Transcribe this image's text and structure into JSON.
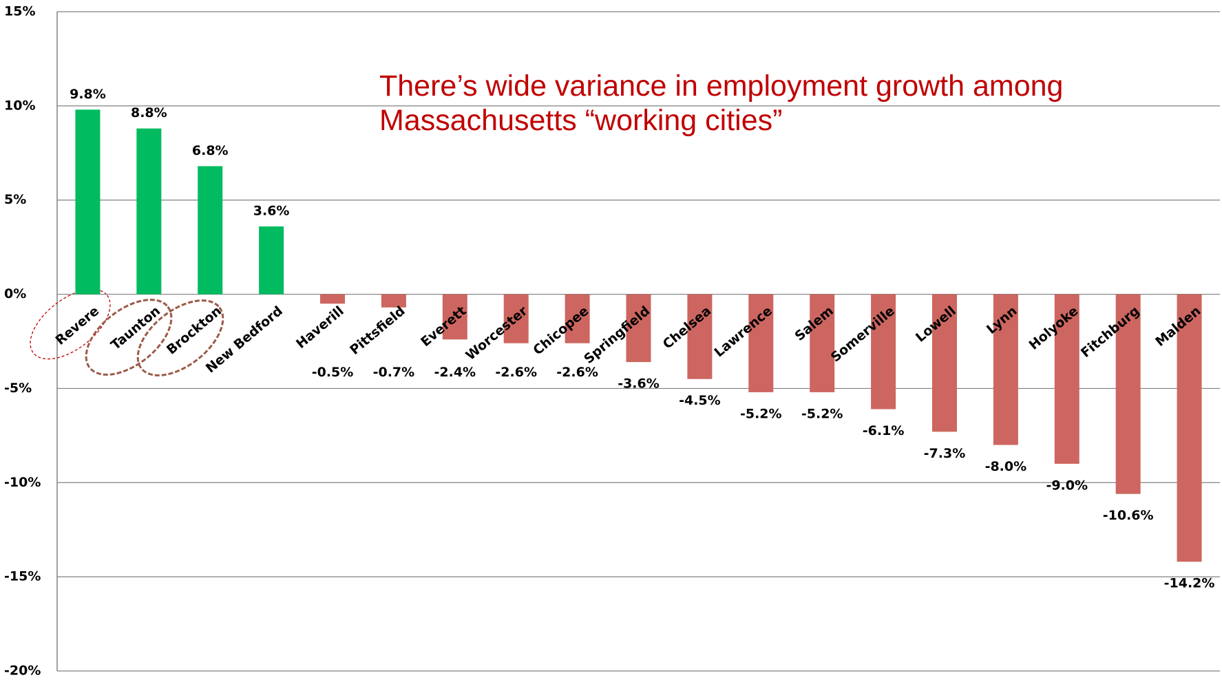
{
  "chart_data": {
    "type": "bar",
    "title": "There’s wide variance in employment growth among Massachusetts “working cities”",
    "categories": [
      "Revere",
      "Taunton",
      "Brockton",
      "New Bedford",
      "Haverill",
      "Pittsfield",
      "Everett",
      "Worcester",
      "Chicopee",
      "Springfield",
      "Chelsea",
      "Lawrence",
      "Salem",
      "Somerville",
      "Lowell",
      "Lynn",
      "Holyoke",
      "Fitchburg",
      "Malden"
    ],
    "values": [
      9.8,
      8.8,
      6.8,
      3.6,
      -0.5,
      -0.7,
      -2.4,
      -2.6,
      -2.6,
      -3.6,
      -4.5,
      -5.2,
      -5.2,
      -6.1,
      -7.3,
      -8.0,
      -9.0,
      -10.6,
      -14.2
    ],
    "value_labels": [
      "9.8%",
      "8.8%",
      "6.8%",
      "3.6%",
      "-0.5%",
      "-0.7%",
      "-2.4%",
      "-2.6%",
      "-2.6%",
      "-3.6%",
      "-4.5%",
      "-5.2%",
      "-5.2%",
      "-6.1%",
      "-7.3%",
      "-8.0%",
      "-9.0%",
      "-10.6%",
      "-14.2%"
    ],
    "positive_color": "#00bb5f",
    "negative_color": "#cd6660",
    "ylim": [
      -20,
      15
    ],
    "yticks": [
      {
        "value": -20,
        "label": "-20%"
      },
      {
        "value": -15,
        "label": "-15%"
      },
      {
        "value": -10,
        "label": "-10%"
      },
      {
        "value": -5,
        "label": "-5%"
      },
      {
        "value": 0,
        "label": "0%"
      },
      {
        "value": 5,
        "label": "5%"
      },
      {
        "value": 10,
        "label": "10%"
      },
      {
        "value": 15,
        "label": "15%"
      }
    ],
    "grid": true
  }
}
